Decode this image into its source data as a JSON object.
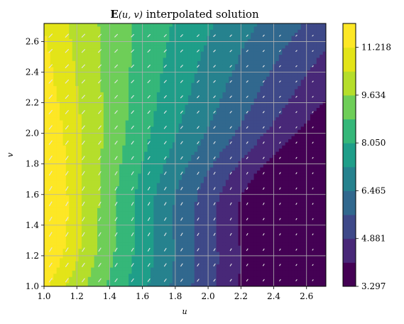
{
  "chart_data": {
    "type": "contourf",
    "title_bold": "E",
    "title_args": "(u, v)",
    "title_rest": " interpolated solution",
    "xlabel": "u",
    "ylabel": "v",
    "xlim": [
      1.0,
      2.718
    ],
    "ylim": [
      1.0,
      2.718
    ],
    "x_ticks": [
      1.0,
      1.2,
      1.4,
      1.6,
      1.8,
      2.0,
      2.2,
      2.4,
      2.6
    ],
    "x_tick_labels": [
      "1.0",
      "1.2",
      "1.4",
      "1.6",
      "1.8",
      "2.0",
      "2.2",
      "2.4",
      "2.6"
    ],
    "y_ticks": [
      1.0,
      1.2,
      1.4,
      1.6,
      1.8,
      2.0,
      2.2,
      2.4,
      2.6
    ],
    "y_tick_labels": [
      "1.0",
      "1.2",
      "1.4",
      "1.6",
      "1.8",
      "2.0",
      "2.2",
      "2.4",
      "2.6"
    ],
    "grid": true,
    "colormap": "viridis",
    "levels": [
      3.297,
      4.089,
      4.881,
      5.673,
      6.465,
      7.258,
      8.05,
      8.842,
      9.634,
      10.426,
      11.218,
      12.01
    ],
    "colorbar_ticks": [
      3.297,
      4.881,
      6.465,
      8.05,
      9.634,
      11.218
    ],
    "colorbar_tick_labels": [
      "3.297",
      "4.881",
      "6.465",
      "8.050",
      "9.634",
      "11.218"
    ],
    "level_colors": [
      "#440154",
      "#482878",
      "#3e4989",
      "#31688e",
      "#26828e",
      "#1f9e89",
      "#35b779",
      "#6ece58",
      "#b5de2b",
      "#e3e418",
      "#fde725"
    ],
    "quiver": true,
    "quiver_color": "#e6e6e6"
  }
}
